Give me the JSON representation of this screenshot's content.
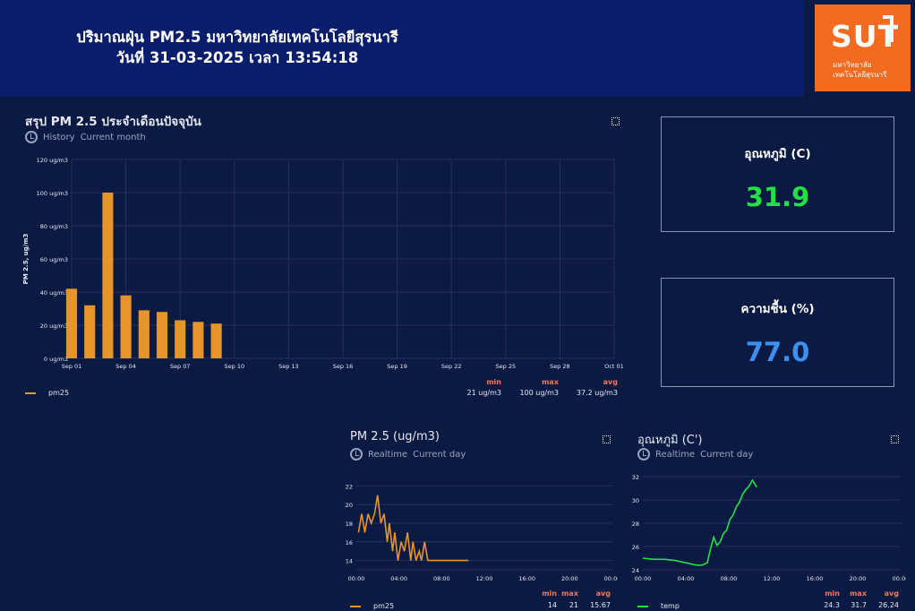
{
  "header": {
    "title_line1": "ปริมาณฝุ่น PM2.5 มหาวิทยาลัยเทคโนโลยีสุรนารี",
    "title_line2": "วันที่ 31-03-2025 เวลา 13:54:18"
  },
  "logo": {
    "text": "SUT",
    "sub_line1": "มหาวิทยาลัย",
    "sub_line2": "เทคโนโลยีสุรนารี",
    "color": "#f26b21"
  },
  "monthly": {
    "title": "สรุป PM 2.5 ประจำเดือนปัจจุบัน",
    "sub_mode": "History",
    "sub_range": "Current month",
    "legend": "pm25",
    "summary": {
      "min_label": "min",
      "max_label": "max",
      "avg_label": "avg",
      "min": "21 ug/m3",
      "max": "100 ug/m3",
      "avg": "37.2 ug/m3"
    }
  },
  "temp_stat": {
    "label": "อุณหภูมิ (C)",
    "value": "31.9",
    "color": "#22e045"
  },
  "humidity_stat": {
    "label": "ความชื้น (%)",
    "value": "77.0",
    "color": "#3d8ff0"
  },
  "pm_day": {
    "title": "PM 2.5 (ug/m3)",
    "sub_mode": "Realtime",
    "sub_range": "Current day",
    "legend": "pm25",
    "summary": {
      "min_label": "min",
      "max_label": "max",
      "avg_label": "avg",
      "min": "14",
      "max": "21",
      "avg": "15.67"
    }
  },
  "temp_day": {
    "title": "อุณหภูมิ (C')",
    "sub_mode": "Realtime",
    "sub_range": "Current day",
    "legend": "temp",
    "summary": {
      "min_label": "min",
      "max_label": "max",
      "avg_label": "avg",
      "min": "24.3",
      "max": "31.7",
      "avg": "26.24"
    }
  },
  "chart_data": [
    {
      "type": "bar",
      "title": "สรุป PM 2.5 ประจำเดือนปัจจุบัน",
      "ylabel": "PM 2.5, ug/m3",
      "ylim": [
        0,
        120
      ],
      "y_ticks": [
        "0 ug/m3",
        "20 ug/m3",
        "40 ug/m3",
        "60 ug/m3",
        "80 ug/m3",
        "100 ug/m3",
        "120 ug/m3"
      ],
      "x_ticks": [
        "Sep 01",
        "Sep 04",
        "Sep 07",
        "Sep 10",
        "Sep 13",
        "Sep 16",
        "Sep 19",
        "Sep 22",
        "Sep 25",
        "Sep 28",
        "Oct 01"
      ],
      "x_range": [
        1,
        31
      ],
      "x": [
        1,
        2,
        3,
        4,
        5,
        6,
        7,
        8,
        9
      ],
      "values": [
        42,
        32,
        100,
        38,
        29,
        28,
        23,
        22,
        21
      ],
      "series": [
        {
          "name": "pm25",
          "color": "#e6952a"
        }
      ],
      "grid": true,
      "legend": "bottom-left"
    },
    {
      "type": "line",
      "title": "PM 2.5 (ug/m3)",
      "ylim": [
        13,
        23
      ],
      "y_ticks": [
        14,
        16,
        18,
        20,
        22
      ],
      "x_ticks": [
        "00:00",
        "04:00",
        "08:00",
        "12:00",
        "16:00",
        "20:00",
        "00:00"
      ],
      "x_range_hours": [
        0,
        24
      ],
      "series": [
        {
          "name": "pm25",
          "color": "#e6952a",
          "x": [
            0.2,
            0.5,
            0.8,
            1.1,
            1.4,
            1.7,
            2.0,
            2.3,
            2.6,
            2.9,
            3.1,
            3.4,
            3.6,
            3.9,
            4.2,
            4.5,
            4.8,
            5.1,
            5.3,
            5.6,
            5.9,
            6.1,
            6.4,
            6.7,
            7.0,
            7.5,
            8.0,
            9.0,
            10.0,
            10.5
          ],
          "y": [
            17,
            19,
            17,
            19,
            18,
            19,
            21,
            18,
            19,
            16,
            18,
            15,
            17,
            14,
            16,
            15,
            17,
            14,
            16,
            14,
            15,
            14,
            16,
            14,
            14,
            14,
            14,
            14,
            14,
            14
          ]
        }
      ],
      "grid": true,
      "legend": "bottom-left"
    },
    {
      "type": "line",
      "title": "อุณหภูมิ (C')",
      "ylim": [
        24,
        32
      ],
      "y_ticks": [
        24,
        26,
        28,
        30,
        32
      ],
      "x_ticks": [
        "00:00",
        "04:00",
        "08:00",
        "12:00",
        "16:00",
        "20:00",
        "00:00"
      ],
      "x_range_hours": [
        0,
        24
      ],
      "series": [
        {
          "name": "temp",
          "color": "#22e045",
          "x": [
            0,
            1,
            2,
            3,
            4,
            5,
            5.5,
            6,
            6.3,
            6.6,
            6.9,
            7.2,
            7.5,
            7.8,
            8.1,
            8.4,
            8.7,
            9.0,
            9.3,
            9.6,
            9.9,
            10.2,
            10.4,
            10.6
          ],
          "y": [
            25,
            24.9,
            24.9,
            24.8,
            24.6,
            24.4,
            24.4,
            24.6,
            25.8,
            26.8,
            26.1,
            26.4,
            27.1,
            27.4,
            28.3,
            28.7,
            29.4,
            29.8,
            30.5,
            30.9,
            31.2,
            31.7,
            31.4,
            31.1
          ]
        }
      ],
      "grid": true,
      "legend": "bottom-left"
    }
  ]
}
